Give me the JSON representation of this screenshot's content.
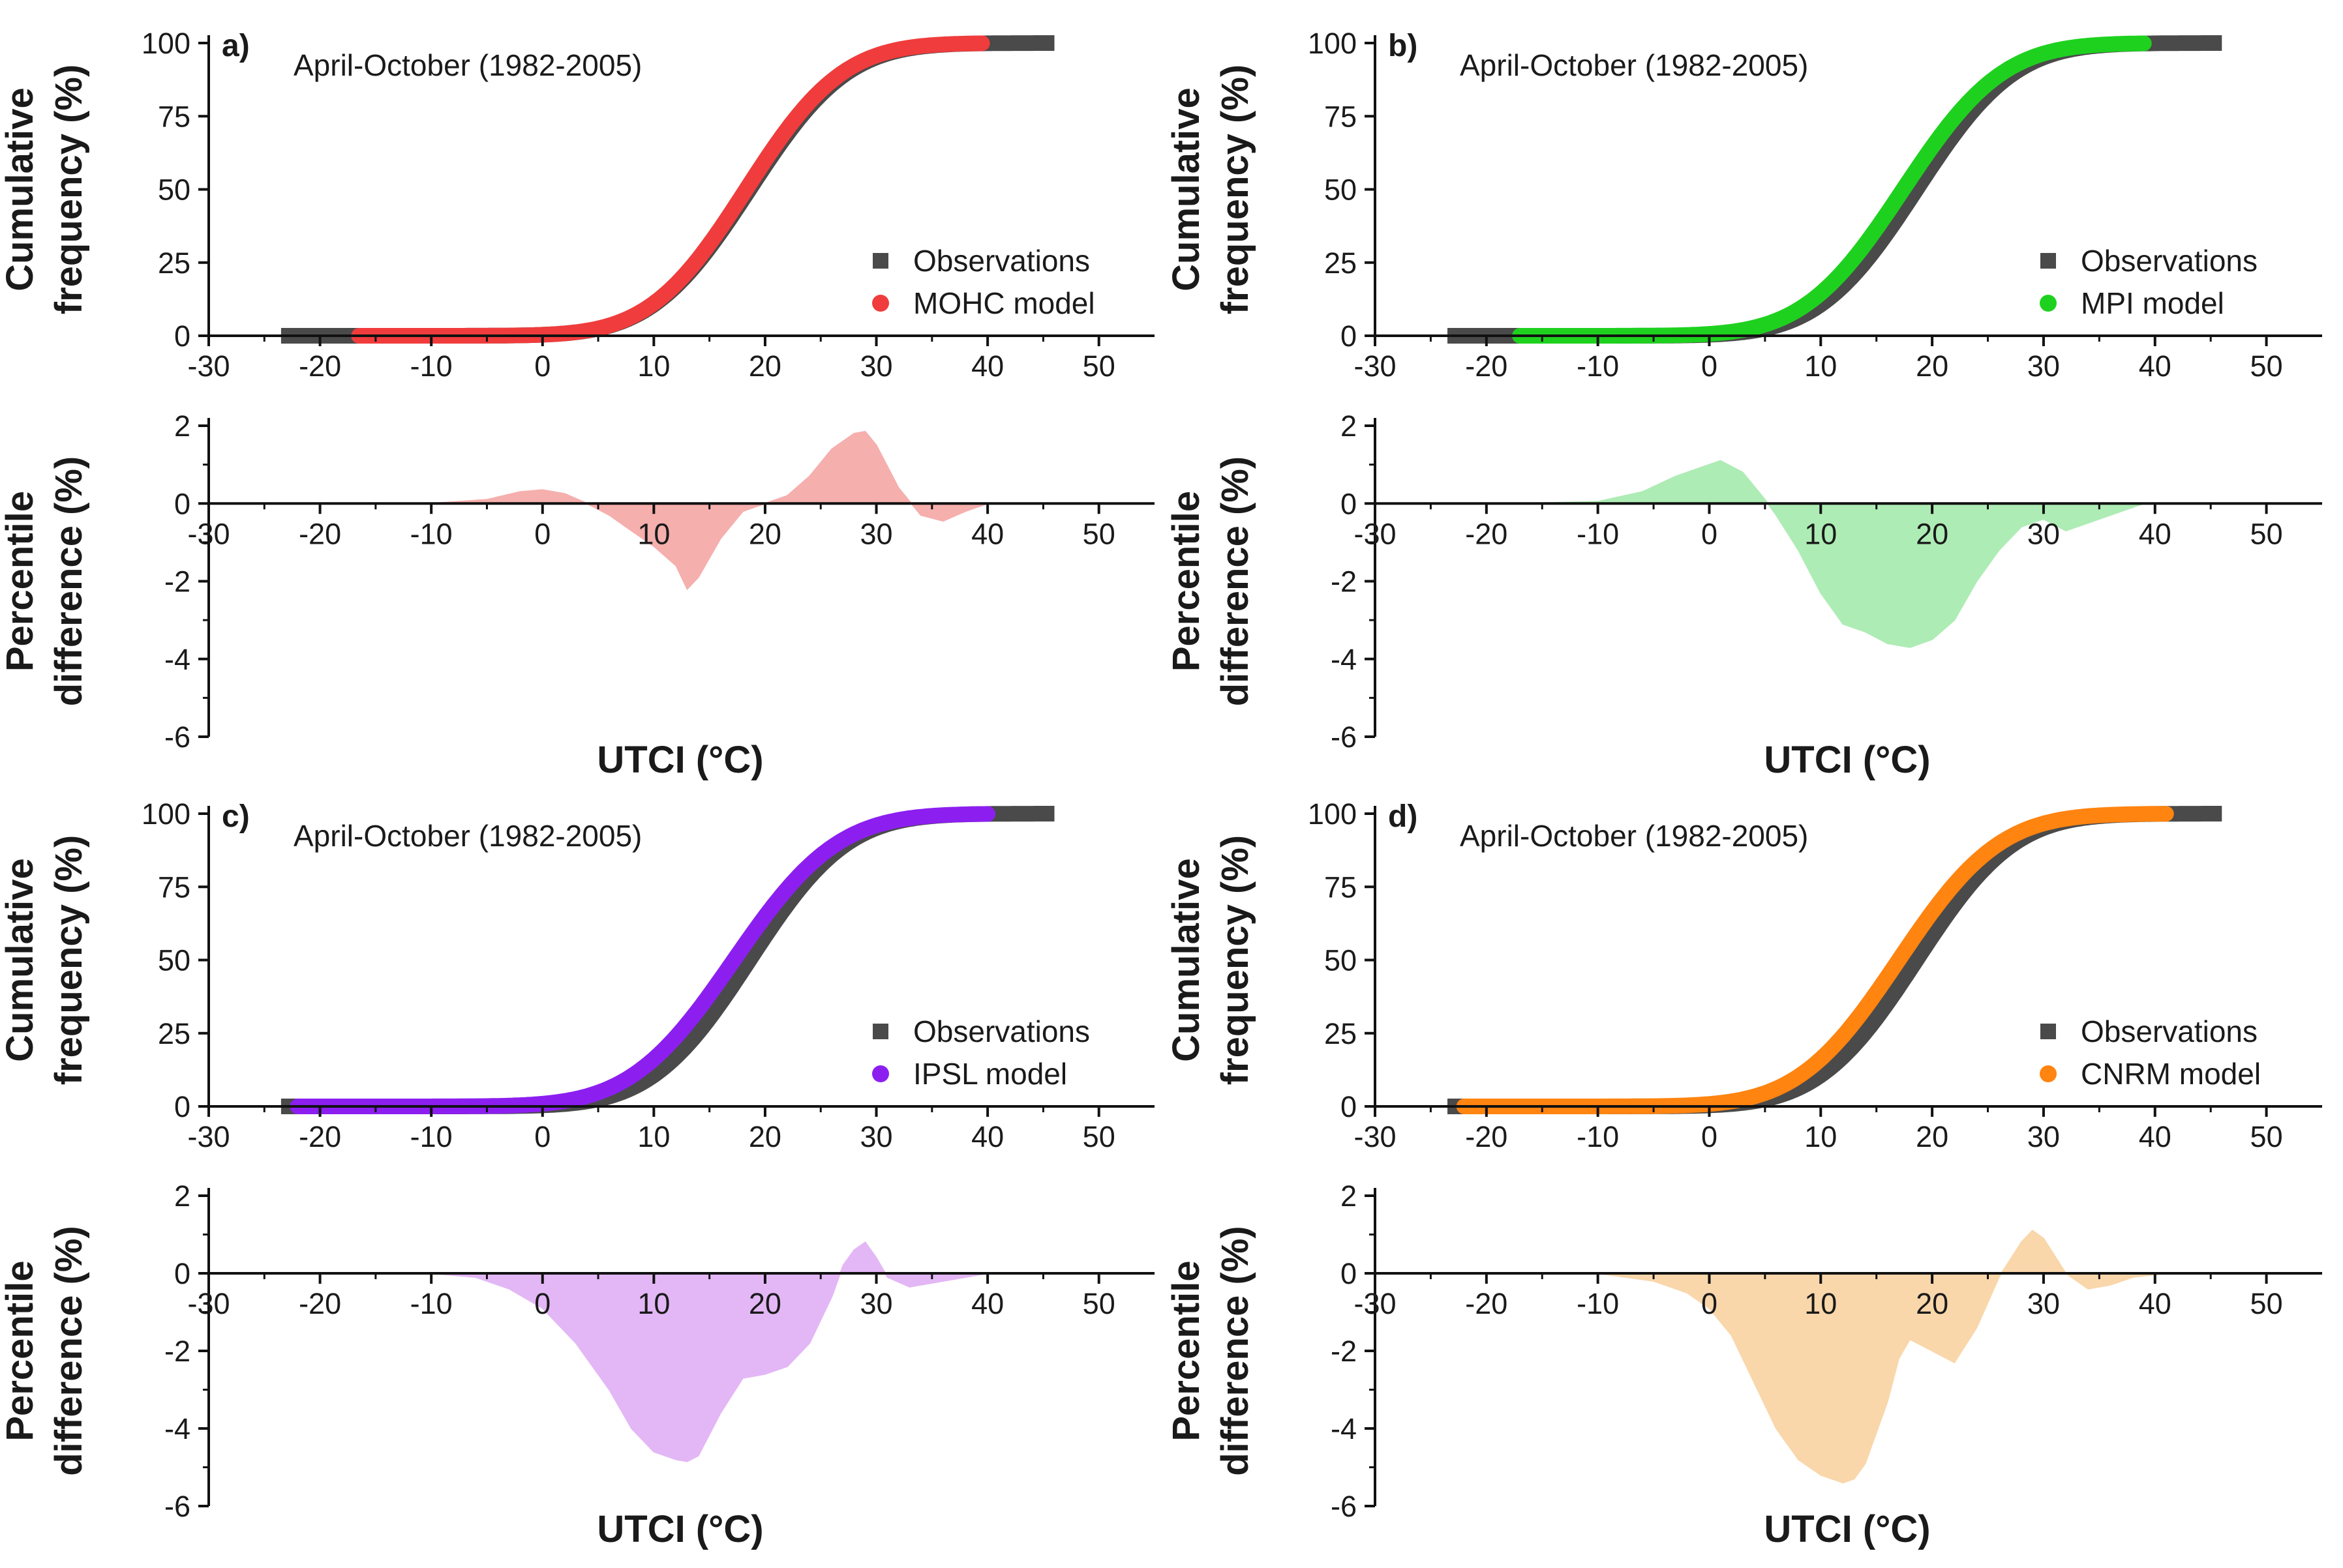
{
  "figure": {
    "x_axis_label": "UTCI (°C)",
    "y_label_top": [
      "Cumulative",
      "frequency (%)"
    ],
    "y_label_bottom": [
      "Percentile",
      "difference (%)"
    ]
  },
  "chart_data": [
    {
      "panel": "a)",
      "model_name": "MOHC model",
      "model_color": "#f03c3c",
      "fill_color": "#f5a7a5",
      "subtitle": "April-October (1982-2005)",
      "legend": [
        "Observations",
        "MOHC model"
      ],
      "observations_color": "#4a4a4a",
      "top": {
        "type": "line",
        "xlim": [
          -30,
          55
        ],
        "ylim": [
          0,
          100
        ],
        "xticks": [
          -30,
          -20,
          -10,
          0,
          10,
          20,
          30,
          40,
          50
        ],
        "yticks": [
          0,
          25,
          50,
          75,
          100
        ],
        "observations": {
          "x_range": [
            -23.5,
            46
          ],
          "mu": 18.6,
          "sigma": 6.9
        },
        "model": {
          "x_range": [
            -16.5,
            39.5
          ],
          "mu": 18.3,
          "sigma": 6.8
        }
      },
      "bottom": {
        "type": "area",
        "xlim": [
          -30,
          55
        ],
        "ylim": [
          -6,
          2
        ],
        "xticks": [
          -30,
          -20,
          -10,
          0,
          10,
          20,
          30,
          40,
          50
        ],
        "yticks": [
          -6,
          -4,
          -2,
          0,
          2
        ],
        "x": [
          -16,
          -10,
          -5,
          -2,
          0,
          2,
          4,
          6,
          8,
          10,
          12,
          13,
          14,
          16,
          18,
          20,
          22,
          24,
          26,
          28,
          29,
          30,
          32,
          34,
          36,
          38,
          40
        ],
        "y": [
          0,
          0,
          0.1,
          0.3,
          0.35,
          0.25,
          0,
          -0.3,
          -0.7,
          -1.1,
          -1.6,
          -2.2,
          -1.9,
          -0.9,
          -0.2,
          0,
          0.2,
          0.7,
          1.4,
          1.8,
          1.85,
          1.5,
          0.4,
          -0.3,
          -0.45,
          -0.2,
          0
        ]
      }
    },
    {
      "panel": "b)",
      "model_name": "MPI model",
      "model_color": "#1fd11f",
      "fill_color": "#a6eaae",
      "subtitle": "April-October (1982-2005)",
      "legend": [
        "Observations",
        "MPI model"
      ],
      "observations_color": "#4a4a4a",
      "top": {
        "type": "line",
        "xlim": [
          -30,
          55
        ],
        "ylim": [
          0,
          100
        ],
        "xticks": [
          -30,
          -20,
          -10,
          0,
          10,
          20,
          30,
          40,
          50
        ],
        "yticks": [
          0,
          25,
          50,
          75,
          100
        ],
        "observations": {
          "x_range": [
            -23.5,
            46
          ],
          "mu": 18.6,
          "sigma": 6.9
        },
        "model": {
          "x_range": [
            -17,
            39
          ],
          "mu": 17.4,
          "sigma": 7.0
        }
      },
      "bottom": {
        "type": "area",
        "xlim": [
          -30,
          55
        ],
        "ylim": [
          -6,
          2
        ],
        "xticks": [
          -30,
          -20,
          -10,
          0,
          10,
          20,
          30,
          40,
          50
        ],
        "yticks": [
          -6,
          -4,
          -2,
          0,
          2
        ],
        "x": [
          -17,
          -10,
          -6,
          -3,
          0,
          1,
          3,
          5,
          6,
          8,
          10,
          12,
          14,
          16,
          18,
          20,
          22,
          24,
          26,
          28,
          30,
          32,
          34,
          36,
          38,
          39
        ],
        "y": [
          0,
          0.05,
          0.3,
          0.7,
          1.0,
          1.1,
          0.8,
          0.1,
          -0.3,
          -1.2,
          -2.3,
          -3.1,
          -3.3,
          -3.6,
          -3.7,
          -3.5,
          -3.0,
          -2.0,
          -1.2,
          -0.6,
          -0.4,
          -0.7,
          -0.5,
          -0.3,
          -0.1,
          0
        ]
      }
    },
    {
      "panel": "c)",
      "model_name": "IPSL model",
      "model_color": "#8c1ff0",
      "fill_color": "#e0b0f4",
      "subtitle": "April-October (1982-2005)",
      "legend": [
        "Observations",
        "IPSL model"
      ],
      "observations_color": "#4a4a4a",
      "top": {
        "type": "line",
        "xlim": [
          -30,
          55
        ],
        "ylim": [
          0,
          100
        ],
        "xticks": [
          -30,
          -20,
          -10,
          0,
          10,
          20,
          30,
          40,
          50
        ],
        "yticks": [
          0,
          25,
          50,
          75,
          100
        ],
        "observations": {
          "x_range": [
            -23.5,
            46
          ],
          "mu": 18.6,
          "sigma": 6.9
        },
        "model": {
          "x_range": [
            -22,
            40
          ],
          "mu": 17.2,
          "sigma": 7.3
        }
      },
      "bottom": {
        "type": "area",
        "xlim": [
          -30,
          55
        ],
        "ylim": [
          -6,
          2
        ],
        "xticks": [
          -30,
          -20,
          -10,
          0,
          10,
          20,
          30,
          40,
          50
        ],
        "yticks": [
          -6,
          -4,
          -2,
          0,
          2
        ],
        "x": [
          -22,
          -10,
          -6,
          -3,
          0,
          3,
          6,
          8,
          10,
          12,
          13,
          14,
          16,
          18,
          20,
          22,
          24,
          26,
          27,
          28,
          29,
          30,
          31,
          33,
          36,
          38,
          40
        ],
        "y": [
          0,
          0,
          -0.1,
          -0.4,
          -0.9,
          -1.8,
          -3.0,
          -4.0,
          -4.6,
          -4.8,
          -4.85,
          -4.7,
          -3.6,
          -2.7,
          -2.6,
          -2.4,
          -1.8,
          -0.6,
          0.2,
          0.6,
          0.8,
          0.4,
          -0.1,
          -0.35,
          -0.2,
          -0.1,
          0
        ]
      }
    },
    {
      "panel": "d)",
      "model_name": "CNRM model",
      "model_color": "#ff8410",
      "fill_color": "#f9d3a2",
      "subtitle": "April-October (1982-2005)",
      "legend": [
        "Observations",
        "CNRM model"
      ],
      "observations_color": "#4a4a4a",
      "top": {
        "type": "line",
        "xlim": [
          -30,
          55
        ],
        "ylim": [
          0,
          100
        ],
        "xticks": [
          -30,
          -20,
          -10,
          0,
          10,
          20,
          30,
          40,
          50
        ],
        "yticks": [
          0,
          25,
          50,
          75,
          100
        ],
        "observations": {
          "x_range": [
            -23.5,
            46
          ],
          "mu": 18.6,
          "sigma": 6.9
        },
        "model": {
          "x_range": [
            -22,
            41
          ],
          "mu": 17.0,
          "sigma": 7.1
        }
      },
      "bottom": {
        "type": "area",
        "xlim": [
          -30,
          55
        ],
        "ylim": [
          -6,
          2
        ],
        "xticks": [
          -30,
          -20,
          -10,
          0,
          10,
          20,
          30,
          40,
          50
        ],
        "yticks": [
          -6,
          -4,
          -2,
          0,
          2
        ],
        "x": [
          -22,
          -10,
          -5,
          -2,
          0,
          2,
          4,
          6,
          8,
          10,
          12,
          13,
          14,
          16,
          17,
          18,
          20,
          22,
          24,
          26,
          28,
          29,
          30,
          32,
          34,
          36,
          38,
          41
        ],
        "y": [
          0,
          0,
          -0.2,
          -0.5,
          -0.9,
          -1.6,
          -2.8,
          -4.0,
          -4.8,
          -5.2,
          -5.4,
          -5.3,
          -4.9,
          -3.3,
          -2.2,
          -1.7,
          -2.0,
          -2.3,
          -1.4,
          -0.1,
          0.8,
          1.1,
          0.9,
          0.0,
          -0.4,
          -0.3,
          -0.1,
          0
        ]
      }
    }
  ]
}
